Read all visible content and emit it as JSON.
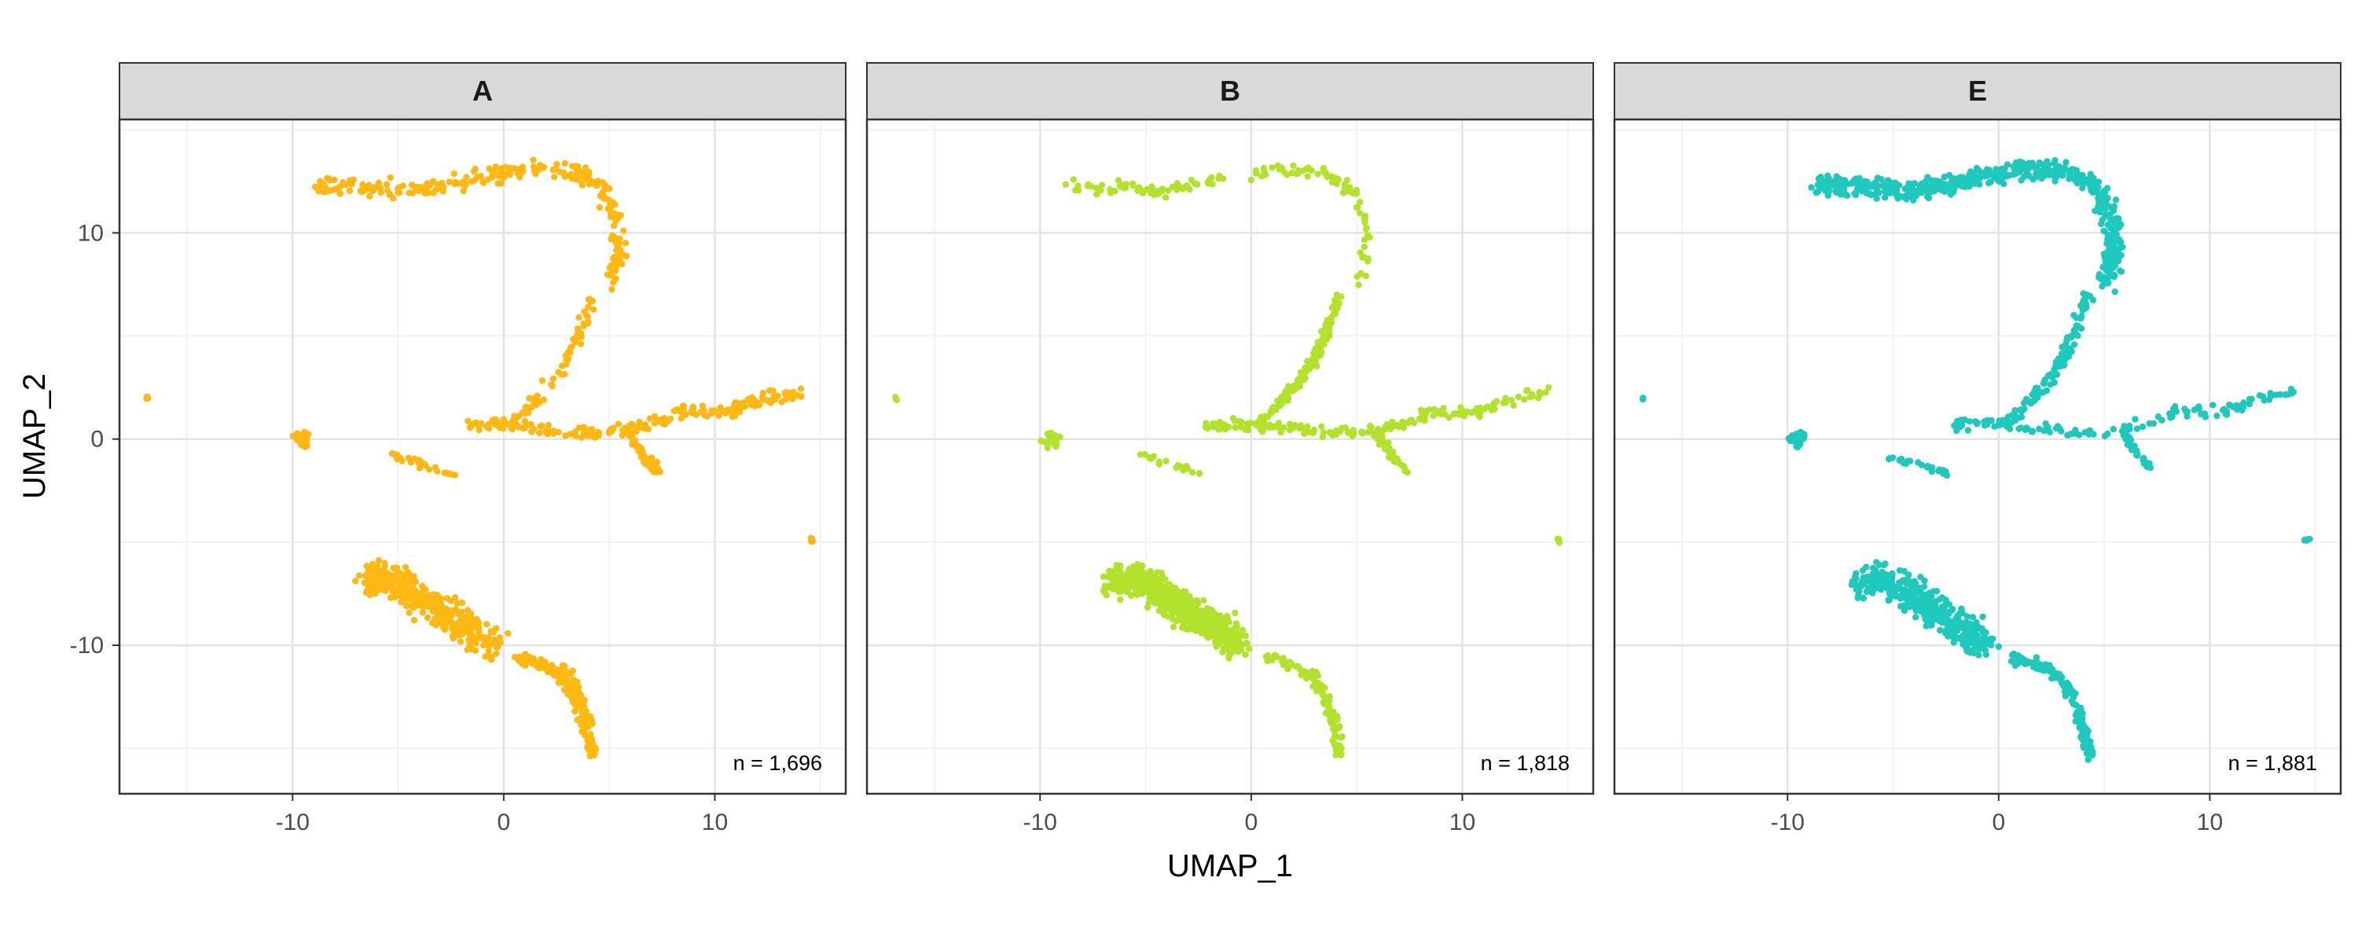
{
  "chart_data": {
    "type": "scatter",
    "xlabel": "UMAP_1",
    "ylabel": "UMAP_2",
    "xlim": [
      -18.2,
      16.2
    ],
    "ylim": [
      -17.2,
      15.5
    ],
    "x_ticks": [
      -10,
      0,
      10
    ],
    "y_ticks": [
      -10,
      0,
      10
    ],
    "x_tick_labels": [
      "-10",
      "0",
      "10"
    ],
    "y_tick_labels": [
      "-10",
      "0",
      "10"
    ],
    "grid": true,
    "legend": "none",
    "facets": [
      {
        "label": "A",
        "n_label": "n = 1,696",
        "color": "#FDB813"
      },
      {
        "label": "B",
        "n_label": "n = 1,818",
        "color": "#B2E22C"
      },
      {
        "label": "E",
        "n_label": "n = 1,881",
        "color": "#1FC8BC"
      }
    ],
    "clusters": {
      "top_band": [
        [
          -8.6,
          12.3
        ],
        [
          -6,
          12.2
        ],
        [
          -4.5,
          12
        ],
        [
          -2.5,
          12.3
        ],
        [
          -0.5,
          12.8
        ],
        [
          1.5,
          13.1
        ],
        [
          3.5,
          12.9
        ],
        [
          4.8,
          12
        ],
        [
          5.4,
          10.6
        ],
        [
          5.5,
          9
        ],
        [
          5,
          7.5
        ]
      ],
      "descend": [
        [
          4.2,
          7
        ],
        [
          3.7,
          5.5
        ],
        [
          3,
          3.8
        ],
        [
          2,
          2.5
        ],
        [
          1,
          1.3
        ],
        [
          0.2,
          0.6
        ]
      ],
      "mid_branch": [
        [
          -2.2,
          0.6
        ],
        [
          -0.5,
          0.8
        ],
        [
          1,
          0.6
        ],
        [
          3,
          0.4
        ],
        [
          5,
          0.3
        ],
        [
          7,
          0.7
        ],
        [
          8.5,
          1.3
        ],
        [
          10.5,
          1.3
        ],
        [
          12,
          1.8
        ],
        [
          14,
          2.3
        ]
      ],
      "down_branch": [
        [
          6,
          0.2
        ],
        [
          6.6,
          -0.8
        ],
        [
          7.3,
          -1.5
        ]
      ],
      "cl_left": [
        [
          -9.8,
          0
        ],
        [
          -9.3,
          0.2
        ],
        [
          -9.5,
          -0.4
        ]
      ],
      "small_mid": [
        [
          -5.3,
          -0.8
        ],
        [
          -4.3,
          -1.1
        ],
        [
          -3.2,
          -1.4
        ],
        [
          -2.3,
          -1.8
        ]
      ],
      "dot_far_left": [
        [
          -16.9,
          2
        ]
      ],
      "dot_right": [
        [
          14.6,
          -4.9
        ]
      ],
      "bottom_blob": [
        [
          -6.5,
          -7
        ],
        [
          -5.5,
          -6.7
        ],
        [
          -4.5,
          -7.3
        ],
        [
          -3.5,
          -8
        ],
        [
          -2.4,
          -8.7
        ],
        [
          -1.5,
          -9.3
        ],
        [
          -0.6,
          -10
        ]
      ],
      "bottom_tail": [
        [
          0.6,
          -10.6
        ],
        [
          2,
          -11
        ],
        [
          3,
          -11.6
        ],
        [
          3.6,
          -12.8
        ],
        [
          4,
          -14
        ],
        [
          4.2,
          -15.3
        ]
      ]
    }
  }
}
